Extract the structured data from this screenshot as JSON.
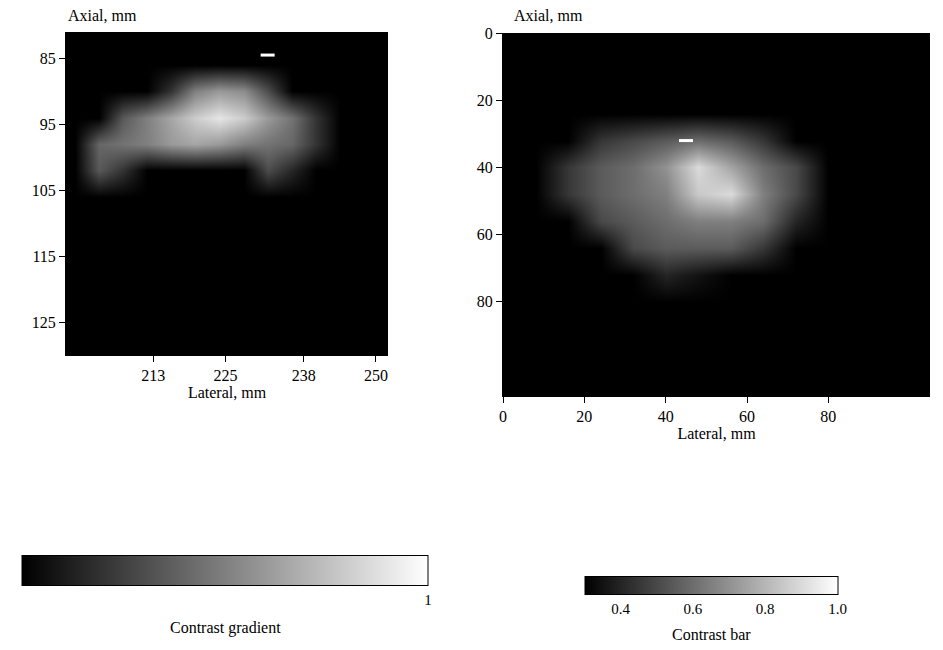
{
  "chart_data": [
    {
      "type": "heatmap",
      "xlabel": "Lateral, mm",
      "ylabel": "Axial, mm",
      "color": "gray",
      "x": [
        200,
        204,
        208,
        212,
        216,
        220,
        224,
        228,
        232,
        236,
        240,
        244,
        248,
        252
      ],
      "y": [
        82,
        86,
        90,
        94,
        98,
        102,
        106,
        110,
        114,
        118,
        122,
        126,
        130
      ],
      "z": [
        [
          0,
          0,
          0,
          0,
          0,
          0,
          0,
          0,
          0,
          0,
          0,
          0,
          0,
          0
        ],
        [
          0,
          0,
          0,
          0,
          0,
          0,
          0,
          0,
          0,
          0,
          0,
          0,
          0,
          0
        ],
        [
          0,
          0,
          0,
          0,
          0.2,
          0.5,
          0.6,
          0.55,
          0.3,
          0,
          0,
          0,
          0,
          0
        ],
        [
          0,
          0,
          0.35,
          0.5,
          0.65,
          0.8,
          0.9,
          0.8,
          0.6,
          0.45,
          0.2,
          0,
          0,
          0
        ],
        [
          0,
          0.4,
          0.45,
          0.5,
          0.6,
          0.65,
          0.6,
          0.5,
          0.45,
          0.4,
          0.2,
          0,
          0,
          0
        ],
        [
          0,
          0.35,
          0.2,
          0,
          0,
          0,
          0,
          0,
          0.3,
          0.15,
          0,
          0,
          0,
          0
        ],
        [
          0,
          0,
          0,
          0,
          0,
          0,
          0,
          0,
          0,
          0,
          0,
          0,
          0,
          0
        ],
        [
          0,
          0,
          0,
          0,
          0,
          0,
          0,
          0,
          0,
          0,
          0,
          0,
          0,
          0
        ],
        [
          0,
          0,
          0,
          0,
          0,
          0,
          0,
          0,
          0,
          0,
          0,
          0,
          0,
          0
        ],
        [
          0,
          0,
          0,
          0,
          0,
          0,
          0,
          0,
          0,
          0,
          0,
          0,
          0,
          0
        ],
        [
          0,
          0,
          0,
          0,
          0,
          0,
          0,
          0,
          0,
          0,
          0,
          0,
          0,
          0
        ],
        [
          0,
          0,
          0,
          0,
          0,
          0,
          0,
          0,
          0,
          0,
          0,
          0,
          0,
          0
        ],
        [
          0,
          0,
          0,
          0,
          0,
          0,
          0,
          0,
          0,
          0,
          0,
          0,
          0,
          0
        ]
      ],
      "xlim": [
        198.5,
        252
      ],
      "ylim": [
        130,
        81
      ],
      "xticks": [
        213,
        225,
        238,
        250
      ],
      "yticks": [
        85,
        95,
        105,
        115,
        125
      ],
      "marker_point": {
        "x": 232,
        "y": 84.5
      },
      "colorbar": {
        "title": "Contrast gradient",
        "range": [
          0,
          1
        ],
        "ticks": [
          1
        ]
      }
    },
    {
      "type": "heatmap",
      "xlabel": "Lateral, mm",
      "ylabel": "Axial, mm",
      "color": "gray",
      "x": [
        0,
        8,
        16,
        24,
        32,
        40,
        48,
        56,
        64,
        72,
        80,
        88,
        96,
        104
      ],
      "y": [
        0,
        8,
        16,
        24,
        32,
        40,
        48,
        56,
        64,
        72,
        80,
        88,
        96,
        104
      ],
      "z": [
        [
          0.3,
          0.3,
          0.3,
          0.3,
          0.3,
          0.3,
          0.3,
          0.3,
          0.3,
          0.3,
          0.3,
          0.3,
          0.3,
          0.3
        ],
        [
          0.3,
          0.3,
          0.3,
          0.3,
          0.3,
          0.3,
          0.3,
          0.3,
          0.3,
          0.3,
          0.3,
          0.3,
          0.3,
          0.3
        ],
        [
          0.3,
          0.3,
          0.3,
          0.3,
          0.3,
          0.3,
          0.3,
          0.3,
          0.3,
          0.3,
          0.3,
          0.3,
          0.3,
          0.3
        ],
        [
          0.3,
          0.3,
          0.3,
          0.3,
          0.3,
          0.3,
          0.3,
          0.3,
          0.3,
          0.3,
          0.3,
          0.3,
          0.3,
          0.3
        ],
        [
          0.3,
          0.3,
          0.3,
          0.45,
          0.5,
          0.55,
          0.6,
          0.55,
          0.45,
          0.3,
          0.3,
          0.3,
          0.3,
          0.3
        ],
        [
          0.3,
          0.3,
          0.45,
          0.55,
          0.6,
          0.7,
          0.9,
          0.75,
          0.6,
          0.5,
          0.3,
          0.3,
          0.3,
          0.3
        ],
        [
          0.3,
          0.3,
          0.45,
          0.55,
          0.6,
          0.65,
          0.85,
          0.9,
          0.65,
          0.5,
          0.3,
          0.3,
          0.3,
          0.3
        ],
        [
          0.3,
          0.3,
          0.3,
          0.5,
          0.55,
          0.6,
          0.65,
          0.65,
          0.6,
          0.4,
          0.3,
          0.3,
          0.3,
          0.3
        ],
        [
          0.3,
          0.3,
          0.3,
          0.3,
          0.5,
          0.55,
          0.55,
          0.55,
          0.45,
          0.3,
          0.3,
          0.3,
          0.3,
          0.3
        ],
        [
          0.3,
          0.3,
          0.3,
          0.3,
          0.3,
          0.4,
          0.35,
          0.3,
          0.3,
          0.3,
          0.3,
          0.3,
          0.3,
          0.3
        ],
        [
          0.3,
          0.3,
          0.3,
          0.3,
          0.3,
          0.3,
          0.3,
          0.3,
          0.3,
          0.3,
          0.3,
          0.3,
          0.3,
          0.3
        ],
        [
          0.3,
          0.3,
          0.3,
          0.3,
          0.3,
          0.3,
          0.3,
          0.3,
          0.3,
          0.3,
          0.3,
          0.3,
          0.3,
          0.3
        ],
        [
          0.3,
          0.3,
          0.3,
          0.3,
          0.3,
          0.3,
          0.3,
          0.3,
          0.3,
          0.3,
          0.3,
          0.3,
          0.3,
          0.3
        ],
        [
          0.3,
          0.3,
          0.3,
          0.3,
          0.3,
          0.3,
          0.3,
          0.3,
          0.3,
          0.3,
          0.3,
          0.3,
          0.3,
          0.3
        ]
      ],
      "xlim": [
        0,
        105
      ],
      "ylim": [
        108,
        0
      ],
      "xticks": [
        0,
        20,
        40,
        60,
        80
      ],
      "yticks": [
        0,
        20,
        40,
        60,
        80
      ],
      "marker_point": {
        "x": 45,
        "y": 32
      },
      "colorbar": {
        "title": "Contrast bar",
        "range": [
          0.3,
          1.0
        ],
        "ticks": [
          0.4,
          0.6,
          0.8,
          {
            "value": 1.0,
            "label": "1.0"
          }
        ]
      }
    }
  ]
}
